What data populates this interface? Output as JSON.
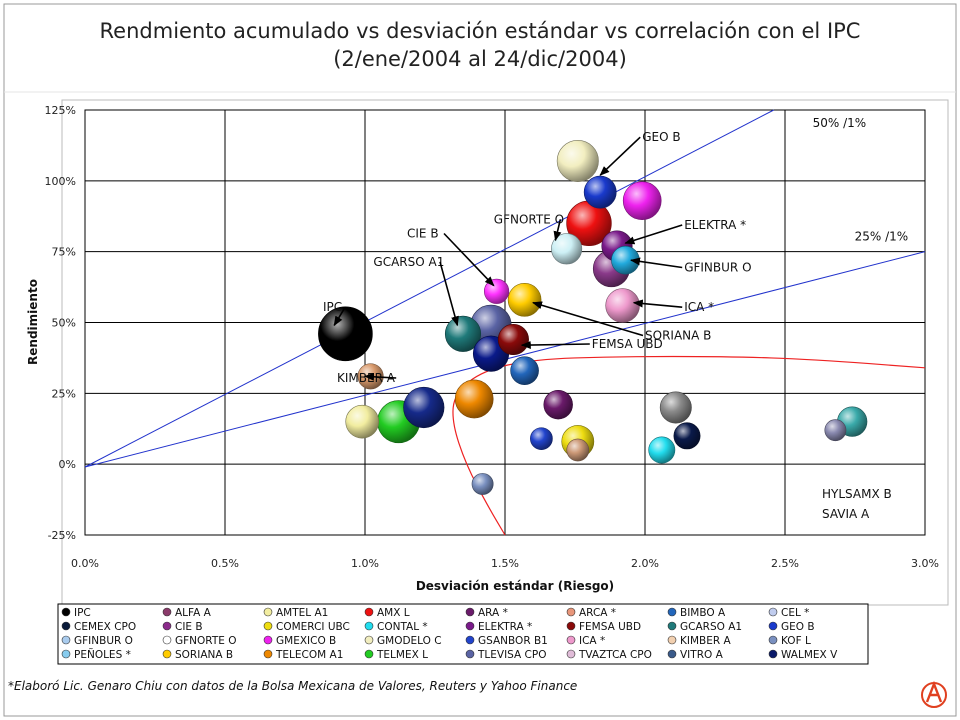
{
  "chart_data": {
    "type": "scatter",
    "title": "Rendmiento acumulado vs desviación estándar vs correlación con el IPC",
    "subtitle": "(2/ene/2004 al 24/dic/2004)",
    "xlabel": "Desviación estándar (Riesgo)",
    "ylabel": "Rendimiento",
    "xlim": [
      0.0,
      3.0
    ],
    "ylim": [
      -25,
      125
    ],
    "x_ticks": [
      "0.0%",
      "0.5%",
      "1.0%",
      "1.5%",
      "2.0%",
      "2.5%",
      "3.0%"
    ],
    "y_ticks": [
      "125%",
      "100%",
      "75%",
      "50%",
      "25%",
      "0%",
      "-25%"
    ],
    "grid": true,
    "points": [
      {
        "name": "IPC",
        "x": 0.93,
        "y": 46,
        "size": 1.0,
        "color": "#000000"
      },
      {
        "name": "KIMBER A",
        "x": 1.02,
        "y": 31,
        "size": 0.32,
        "color": "#d99a6c"
      },
      {
        "name": "AMTEL A1",
        "x": 0.99,
        "y": 15,
        "size": 0.5,
        "color": "#f2eda0"
      },
      {
        "name": "TELMEX L",
        "x": 1.12,
        "y": 15,
        "size": 0.72,
        "color": "#22cc22"
      },
      {
        "name": "WALMEX V",
        "x": 1.21,
        "y": 20,
        "size": 0.68,
        "color": "#162a8a"
      },
      {
        "name": "GCARSO A1",
        "x": 1.35,
        "y": 46,
        "size": 0.56,
        "color": "#1f7a7a"
      },
      {
        "name": "TLEVISA CPO",
        "x": 1.45,
        "y": 49,
        "size": 0.68,
        "color": "#5a63a4"
      },
      {
        "name": "CIE B",
        "x": 1.47,
        "y": 61,
        "size": 0.3,
        "color": "#ff33ff"
      },
      {
        "name": "GMODELO C",
        "x": 1.45,
        "y": 39,
        "size": 0.56,
        "color": "#0a1a8a"
      },
      {
        "name": "FEMSA UBD",
        "x": 1.53,
        "y": 44,
        "size": 0.44,
        "color": "#8a0a0a"
      },
      {
        "name": "SORIANA B",
        "x": 1.57,
        "y": 58,
        "size": 0.5,
        "color": "#ffcc00"
      },
      {
        "name": "TELECOM A1",
        "x": 1.39,
        "y": 23,
        "size": 0.62,
        "color": "#ee8800"
      },
      {
        "name": "BIMBO A",
        "x": 1.57,
        "y": 33,
        "size": 0.38,
        "color": "#2266bb"
      },
      {
        "name": "KOF L",
        "x": 1.42,
        "y": -7,
        "size": 0.22,
        "color": "#7a90c0"
      },
      {
        "name": "GSANBOR B1",
        "x": 1.63,
        "y": 9,
        "size": 0.24,
        "color": "#2244cc"
      },
      {
        "name": "ARA *",
        "x": 1.69,
        "y": 21,
        "size": 0.4,
        "color": "#6a1a6a"
      },
      {
        "name": "ARCA *",
        "x": 1.76,
        "y": 5,
        "size": 0.24,
        "color": "#cc9977"
      },
      {
        "name": "COMERCI UBC",
        "x": 1.76,
        "y": 8,
        "size": 0.48,
        "color": "#eedd11"
      },
      {
        "name": "GFNORTE O",
        "x": 1.72,
        "y": 76,
        "size": 0.44,
        "color": "#cdf0f5"
      },
      {
        "name": "GEO B",
        "x": 1.84,
        "y": 96,
        "size": 0.48,
        "color": "#1a3acc"
      },
      {
        "name": "AMX L",
        "x": 1.8,
        "y": 85,
        "size": 0.78,
        "color": "#ee1111"
      },
      {
        "name": "GMEXICO B",
        "x": 1.99,
        "y": 93,
        "size": 0.62,
        "color": "#ee22ee"
      },
      {
        "name": "CEL *",
        "x": 1.76,
        "y": 107,
        "size": 0.7,
        "color": "#f2eec0"
      },
      {
        "name": "ELEKTRA *",
        "x": 1.9,
        "y": 77,
        "size": 0.44,
        "color": "#7a1a8a"
      },
      {
        "name": "TVAZTCA CPO",
        "x": 1.88,
        "y": 69,
        "size": 0.58,
        "color": "#8a3a8a"
      },
      {
        "name": "GFINBUR O",
        "x": 1.93,
        "y": 72,
        "size": 0.38,
        "color": "#22aadd"
      },
      {
        "name": "ICA *",
        "x": 1.92,
        "y": 56,
        "size": 0.52,
        "color": "#ee99cc"
      },
      {
        "name": "CONTAL *",
        "x": 2.06,
        "y": 5,
        "size": 0.34,
        "color": "#22ddee"
      },
      {
        "name": "ALFA A",
        "x": 2.11,
        "y": 20,
        "size": 0.46,
        "color": "#8a8a8a"
      },
      {
        "name": "VITRO A",
        "x": 2.15,
        "y": 10,
        "size": 0.34,
        "color": "#0a1a4a"
      },
      {
        "name": "PEÑOLES *",
        "x": 2.68,
        "y": 12,
        "size": 0.22,
        "color": "#8a8ab0"
      },
      {
        "name": "CEMEX CPO",
        "x": 2.74,
        "y": 15,
        "size": 0.42,
        "color": "#3aaaaa"
      }
    ],
    "lines": [
      {
        "label": "50% /1%",
        "color": "#2233cc",
        "from": [
          0.0,
          -1
        ],
        "to": [
          2.46,
          125
        ]
      },
      {
        "label": "25% /1%",
        "color": "#2233cc",
        "from": [
          0.0,
          -1
        ],
        "to": [
          3.0,
          75
        ]
      }
    ],
    "frontier": {
      "color": "#ee2222",
      "points": [
        [
          1.5,
          -25
        ],
        [
          1.44,
          -15
        ],
        [
          1.36,
          0
        ],
        [
          1.31,
          15
        ],
        [
          1.32,
          25
        ],
        [
          1.42,
          33
        ],
        [
          1.6,
          37
        ],
        [
          1.9,
          38
        ],
        [
          2.3,
          38
        ],
        [
          2.6,
          37
        ],
        [
          3.0,
          34
        ]
      ]
    },
    "annotations": [
      {
        "text": "GEO B",
        "tx": 1.99,
        "ty": 114,
        "ax": 1.84,
        "ay": 102
      },
      {
        "text": "GFNORTE O",
        "tx": 1.46,
        "ty": 85,
        "ax": 1.68,
        "ay": 79
      },
      {
        "text": "ELEKTRA *",
        "tx": 2.14,
        "ty": 83,
        "ax": 1.93,
        "ay": 78
      },
      {
        "text": "CIE B",
        "tx": 1.15,
        "ty": 80,
        "ax": 1.46,
        "ay": 63
      },
      {
        "text": "GCARSO A1",
        "tx": 1.03,
        "ty": 70,
        "ax": 1.33,
        "ay": 49
      },
      {
        "text": "GFINBUR O",
        "tx": 2.14,
        "ty": 68,
        "ax": 1.95,
        "ay": 72
      },
      {
        "text": "IPC",
        "tx": 0.85,
        "ty": 54,
        "ax": 0.89,
        "ay": 49
      },
      {
        "text": "ICA *",
        "tx": 2.14,
        "ty": 54,
        "ax": 1.96,
        "ay": 57
      },
      {
        "text": "SORIANA B",
        "tx": 2.0,
        "ty": 44,
        "ax": 1.6,
        "ay": 57
      },
      {
        "text": "FEMSA UBD",
        "tx": 1.81,
        "ty": 41,
        "ax": 1.56,
        "ay": 42
      },
      {
        "text": "KIMBER A",
        "tx": 0.9,
        "ty": 29,
        "ax": 1.0,
        "ay": 31
      }
    ],
    "line_labels": [
      {
        "text": "50% /1%",
        "x": 2.79,
        "y": 119
      },
      {
        "text": "25% /1%",
        "x": 2.94,
        "y": 79
      }
    ],
    "note": [
      "HYLSAMX B",
      "SAVIA A"
    ]
  },
  "legend": [
    {
      "name": "IPC",
      "color": "#000000"
    },
    {
      "name": "ALFA A",
      "color": "#8a3a6a"
    },
    {
      "name": "AMTEL A1",
      "color": "#f2eda0"
    },
    {
      "name": "AMX L",
      "color": "#ee1111"
    },
    {
      "name": "ARA *",
      "color": "#6a1a6a"
    },
    {
      "name": "ARCA *",
      "color": "#e8967a"
    },
    {
      "name": "BIMBO A",
      "color": "#2266bb"
    },
    {
      "name": "CEL *",
      "color": "#c0ccee"
    },
    {
      "name": "CEMEX CPO",
      "color": "#0a1a3a"
    },
    {
      "name": "CIE B",
      "color": "#8a2a8a"
    },
    {
      "name": "COMERCI UBC",
      "color": "#eedd11"
    },
    {
      "name": "CONTAL *",
      "color": "#22ddee"
    },
    {
      "name": "ELEKTRA *",
      "color": "#7a1a8a"
    },
    {
      "name": "FEMSA UBD",
      "color": "#8a0a0a"
    },
    {
      "name": "GCARSO A1",
      "color": "#1f7a7a"
    },
    {
      "name": "GEO B",
      "color": "#1a3acc"
    },
    {
      "name": "GFINBUR O",
      "color": "#aaccee"
    },
    {
      "name": "GFNORTE O",
      "color": "#ffffff"
    },
    {
      "name": "GMEXICO B",
      "color": "#ee22ee"
    },
    {
      "name": "GMODELO C",
      "color": "#f2eec0"
    },
    {
      "name": "GSANBOR B1",
      "color": "#2244cc"
    },
    {
      "name": "ICA *",
      "color": "#ee99cc"
    },
    {
      "name": "KIMBER A",
      "color": "#f2d0b0"
    },
    {
      "name": "KOF L",
      "color": "#7a90c0"
    },
    {
      "name": "PEÑOLES *",
      "color": "#88ccee"
    },
    {
      "name": "SORIANA B",
      "color": "#ffcc00"
    },
    {
      "name": "TELECOM A1",
      "color": "#ee8800"
    },
    {
      "name": "TELMEX L",
      "color": "#22cc22"
    },
    {
      "name": "TLEVISA CPO",
      "color": "#5a63a4"
    },
    {
      "name": "TVAZTCA CPO",
      "color": "#e0bcd8"
    },
    {
      "name": "VITRO A",
      "color": "#3a5a8a"
    },
    {
      "name": "WALMEX V",
      "color": "#0a1a6a"
    }
  ],
  "footnote": "*Elaboró Lic. Genaro Chiu con datos de la Bolsa Mexicana de Valores, Reuters y Yahoo Finance"
}
